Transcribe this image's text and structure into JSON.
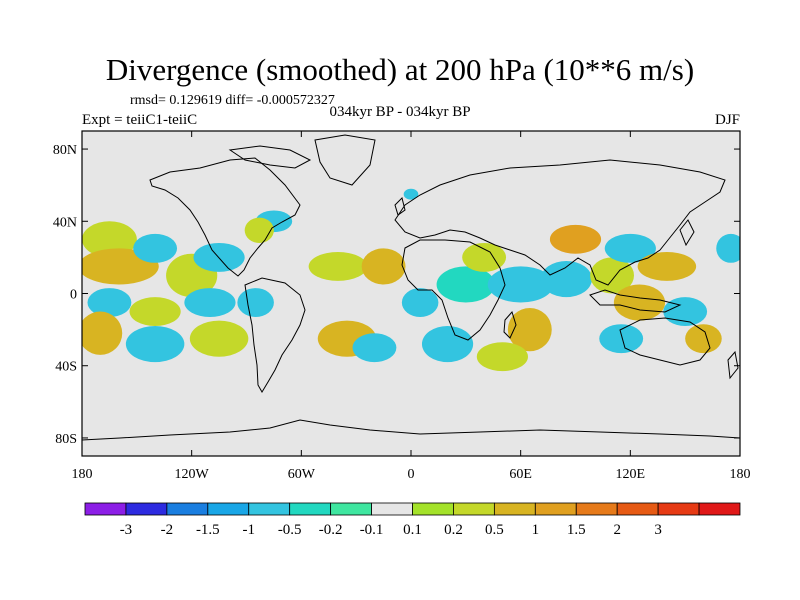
{
  "title": "Divergence (smoothed) at 200 hPa (10**6 m/s)",
  "stats": "rmsd= 0.129619 diff= -0.000572327",
  "experiment": "Expt = teiiC1-teiiC",
  "period": "034kyr BP - 034kyr BP",
  "season": "DJF",
  "map": {
    "projection": "cylindrical equidistant",
    "lon_range": [
      -180,
      180
    ],
    "lat_range": [
      -90,
      90
    ],
    "background": "#e6e6e6",
    "coastline_color": "#000000",
    "x_ticks": [
      {
        "lon": -180,
        "label": "180"
      },
      {
        "lon": -120,
        "label": "120W"
      },
      {
        "lon": -60,
        "label": "60W"
      },
      {
        "lon": 0,
        "label": "0"
      },
      {
        "lon": 60,
        "label": "60E"
      },
      {
        "lon": 120,
        "label": "120E"
      },
      {
        "lon": 180,
        "label": "180"
      }
    ],
    "y_ticks": [
      {
        "lat": 80,
        "label": "80N"
      },
      {
        "lat": 40,
        "label": "40N"
      },
      {
        "lat": 0,
        "label": "0"
      },
      {
        "lat": -40,
        "label": "40S"
      },
      {
        "lat": -80,
        "label": "80S"
      }
    ],
    "anomaly_patches": [
      {
        "lon": -165,
        "lat": 30,
        "rx": 15,
        "ry": 10,
        "level": 0.2
      },
      {
        "lon": -160,
        "lat": 15,
        "rx": 22,
        "ry": 10,
        "level": 0.5
      },
      {
        "lon": -140,
        "lat": 25,
        "rx": 12,
        "ry": 8,
        "level": -0.5
      },
      {
        "lon": -120,
        "lat": 10,
        "rx": 14,
        "ry": 12,
        "level": 0.2
      },
      {
        "lon": -105,
        "lat": 20,
        "rx": 14,
        "ry": 8,
        "level": -0.5
      },
      {
        "lon": -165,
        "lat": -5,
        "rx": 12,
        "ry": 8,
        "level": -0.5
      },
      {
        "lon": -140,
        "lat": -10,
        "rx": 14,
        "ry": 8,
        "level": 0.2
      },
      {
        "lon": -110,
        "lat": -5,
        "rx": 14,
        "ry": 8,
        "level": -0.5
      },
      {
        "lon": -170,
        "lat": -22,
        "rx": 12,
        "ry": 12,
        "level": 0.5
      },
      {
        "lon": -140,
        "lat": -28,
        "rx": 16,
        "ry": 10,
        "level": -0.5
      },
      {
        "lon": -105,
        "lat": -25,
        "rx": 16,
        "ry": 10,
        "level": 0.2
      },
      {
        "lon": -85,
        "lat": -5,
        "rx": 10,
        "ry": 8,
        "level": -0.5
      },
      {
        "lon": -75,
        "lat": 40,
        "rx": 10,
        "ry": 6,
        "level": -0.5
      },
      {
        "lon": -83,
        "lat": 35,
        "rx": 8,
        "ry": 7,
        "level": 0.2
      },
      {
        "lon": -35,
        "lat": -25,
        "rx": 16,
        "ry": 10,
        "level": 0.5
      },
      {
        "lon": -20,
        "lat": -30,
        "rx": 12,
        "ry": 8,
        "level": -0.5
      },
      {
        "lon": -40,
        "lat": 15,
        "rx": 16,
        "ry": 8,
        "level": 0.2
      },
      {
        "lon": -15,
        "lat": 15,
        "rx": 12,
        "ry": 10,
        "level": 0.5
      },
      {
        "lon": 5,
        "lat": -5,
        "rx": 10,
        "ry": 8,
        "level": -0.5
      },
      {
        "lon": 20,
        "lat": -28,
        "rx": 14,
        "ry": 10,
        "level": -0.5
      },
      {
        "lon": 30,
        "lat": 5,
        "rx": 16,
        "ry": 10,
        "level": -0.2
      },
      {
        "lon": 40,
        "lat": 20,
        "rx": 12,
        "ry": 8,
        "level": 0.2
      },
      {
        "lon": 60,
        "lat": 5,
        "rx": 18,
        "ry": 10,
        "level": -0.5
      },
      {
        "lon": 65,
        "lat": -20,
        "rx": 12,
        "ry": 12,
        "level": 0.5
      },
      {
        "lon": 50,
        "lat": -35,
        "rx": 14,
        "ry": 8,
        "level": 0.2
      },
      {
        "lon": 90,
        "lat": 30,
        "rx": 14,
        "ry": 8,
        "level": 1.0
      },
      {
        "lon": 85,
        "lat": 8,
        "rx": 14,
        "ry": 10,
        "level": -0.5
      },
      {
        "lon": 110,
        "lat": 10,
        "rx": 12,
        "ry": 10,
        "level": 0.2
      },
      {
        "lon": 120,
        "lat": 25,
        "rx": 14,
        "ry": 8,
        "level": -0.5
      },
      {
        "lon": 140,
        "lat": 15,
        "rx": 16,
        "ry": 8,
        "level": 0.5
      },
      {
        "lon": 125,
        "lat": -5,
        "rx": 14,
        "ry": 10,
        "level": 0.5
      },
      {
        "lon": 115,
        "lat": -25,
        "rx": 12,
        "ry": 8,
        "level": -0.5
      },
      {
        "lon": 150,
        "lat": -10,
        "rx": 12,
        "ry": 8,
        "level": -0.5
      },
      {
        "lon": 160,
        "lat": -25,
        "rx": 10,
        "ry": 8,
        "level": 0.5
      },
      {
        "lon": 175,
        "lat": 25,
        "rx": 8,
        "ry": 8,
        "level": -0.5
      },
      {
        "lon": 0,
        "lat": 55,
        "rx": 4,
        "ry": 3,
        "level": -0.5
      }
    ]
  },
  "colorbar": {
    "colors": [
      "#8c1ee6",
      "#2d2be0",
      "#1a7ee0",
      "#19a6e6",
      "#33c4e0",
      "#22d8c0",
      "#3fe6a0",
      "#e6e6e6",
      "#a4e22a",
      "#c4d82a",
      "#d8b422",
      "#e0a020",
      "#e67a1a",
      "#e65a14",
      "#e63a14",
      "#e01818"
    ],
    "labels": [
      "-3",
      "-2",
      "-1.5",
      "-1",
      "-0.5",
      "-0.2",
      "-0.1",
      "0.1",
      "0.2",
      "0.5",
      "1",
      "1.5",
      "2",
      "3"
    ],
    "level_colors": {
      "-1.0": "#19a6e6",
      "-0.5": "#33c4e0",
      "-0.2": "#22d8c0",
      "0.2": "#c4d82a",
      "0.5": "#d8b422",
      "1.0": "#e0a020"
    }
  }
}
